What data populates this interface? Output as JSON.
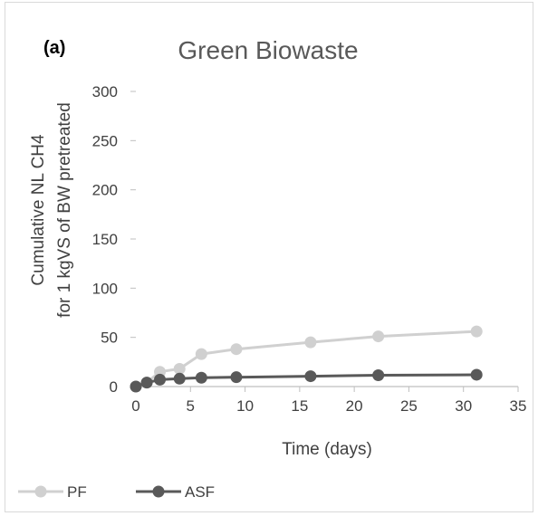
{
  "chart_data": {
    "type": "line",
    "panel_label": "(a)",
    "title": "Green Biowaste",
    "xlabel": "Time (days)",
    "ylabel_lines": [
      "Cumulative NL CH4",
      "for 1 kgVS of BW pretreated"
    ],
    "xlim": [
      0,
      35
    ],
    "ylim": [
      0,
      300
    ],
    "xticks": [
      0,
      5,
      10,
      15,
      20,
      25,
      30,
      35
    ],
    "yticks": [
      0,
      50,
      100,
      150,
      200,
      250,
      300
    ],
    "grid": false,
    "legend_position": "bottom-left",
    "series": [
      {
        "name": "PF",
        "color": "#d0d0d0",
        "x": [
          0,
          1,
          2.2,
          4,
          6,
          9.2,
          16,
          22.2,
          31.2
        ],
        "y": [
          0,
          4,
          15,
          18,
          33,
          38,
          45,
          51,
          56
        ]
      },
      {
        "name": "ASF",
        "color": "#595959",
        "x": [
          0,
          1,
          2.2,
          4,
          6,
          9.2,
          16,
          22.2,
          31.2
        ],
        "y": [
          0,
          4,
          7,
          8,
          9,
          9.5,
          10.5,
          11.5,
          12
        ]
      }
    ]
  }
}
